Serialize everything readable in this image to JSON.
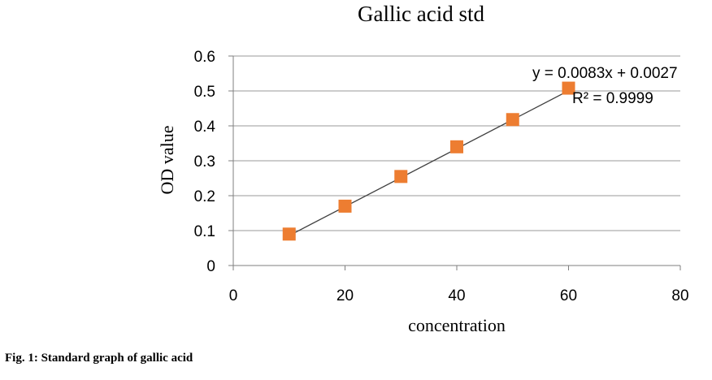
{
  "chart_data": {
    "type": "scatter",
    "title": "Gallic acid std",
    "xlabel": "concentration",
    "ylabel": "OD value",
    "xlim": [
      0,
      80
    ],
    "ylim": [
      0,
      0.6
    ],
    "xticks": [
      "0",
      "20",
      "40",
      "60",
      "80"
    ],
    "yticks": [
      "0",
      "0.1",
      "0.2",
      "0.3",
      "0.4",
      "0.5",
      "0.6"
    ],
    "grid": "horizontal",
    "series": [
      {
        "x": [
          10,
          20,
          30,
          40,
          50,
          60
        ],
        "y": [
          0.09,
          0.17,
          0.255,
          0.34,
          0.418,
          0.508
        ],
        "color": "#ED7D31",
        "marker": "square"
      }
    ],
    "trendline": {
      "type": "linear",
      "slope": 0.0083,
      "intercept": 0.0027,
      "x_range": [
        10,
        60
      ],
      "color": "#404040"
    },
    "annotations": {
      "equation": "y = 0.0083x + 0.0027",
      "r_squared": "R² = 0.9999"
    }
  },
  "caption": "Fig. 1: Standard graph of gallic acid"
}
